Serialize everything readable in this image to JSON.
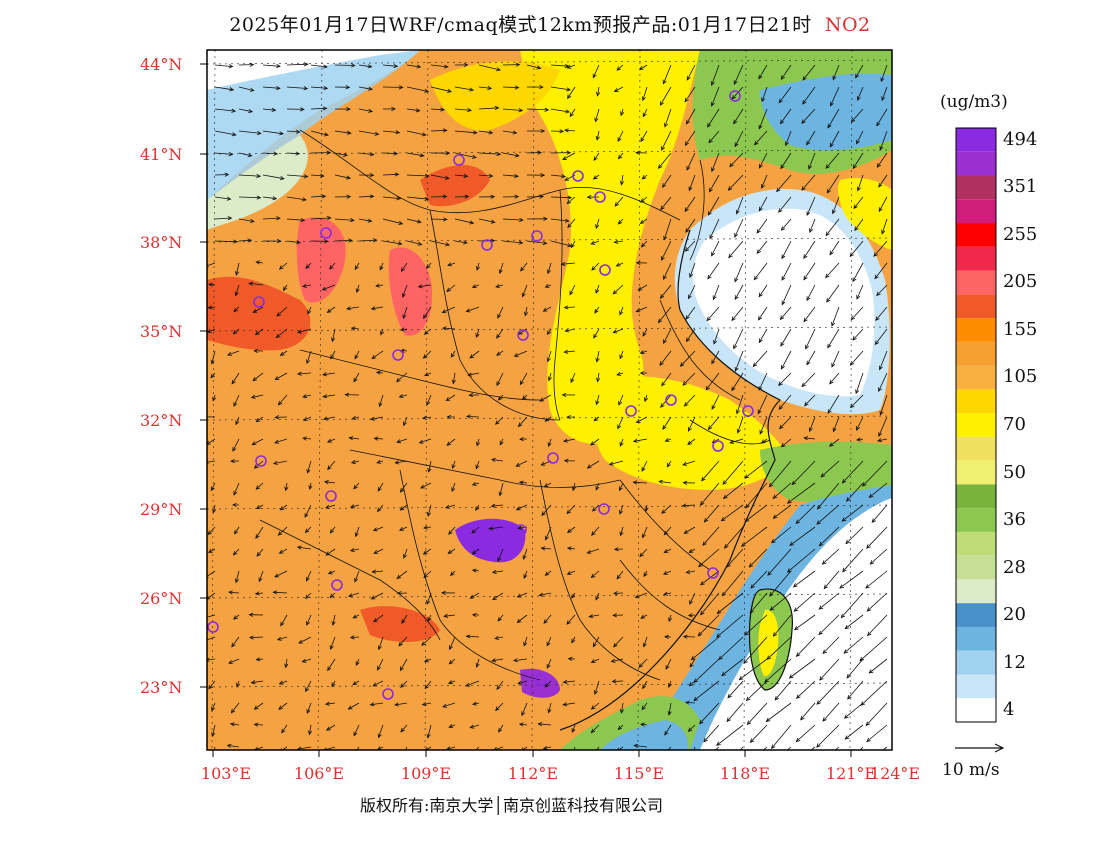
{
  "title": {
    "main": "2025年01月17日WRF/cmaq模式12km预报产品:01月17日21时",
    "pollutant": "NO2"
  },
  "map": {
    "lat_labels": [
      "44°N",
      "41°N",
      "38°N",
      "35°N",
      "32°N",
      "29°N",
      "26°N",
      "23°N"
    ],
    "lon_labels": [
      "103°E",
      "106°E",
      "109°E",
      "112°E",
      "115°E",
      "118°E",
      "121°E",
      "124°E"
    ]
  },
  "legend": {
    "unit": "(ug/m3)",
    "levels": [
      {
        "label": "494",
        "color": "#8a2be2"
      },
      {
        "label": "",
        "color": "#9b30d0"
      },
      {
        "label": "351",
        "color": "#b03060"
      },
      {
        "label": "",
        "color": "#d01c7a"
      },
      {
        "label": "255",
        "color": "#ff0000"
      },
      {
        "label": "",
        "color": "#f0284a"
      },
      {
        "label": "205",
        "color": "#ff6464"
      },
      {
        "label": "",
        "color": "#f05a28"
      },
      {
        "label": "155",
        "color": "#ff8c00"
      },
      {
        "label": "",
        "color": "#f5a030"
      },
      {
        "label": "105",
        "color": "#f8b040"
      },
      {
        "label": "",
        "color": "#ffd700"
      },
      {
        "label": "70",
        "color": "#fff000"
      },
      {
        "label": "",
        "color": "#f0e060"
      },
      {
        "label": "50",
        "color": "#f0f070"
      },
      {
        "label": "",
        "color": "#78b43c"
      },
      {
        "label": "36",
        "color": "#8cc850"
      },
      {
        "label": "",
        "color": "#bedd78"
      },
      {
        "label": "28",
        "color": "#c8e096"
      },
      {
        "label": "",
        "color": "#dcebc8"
      },
      {
        "label": "20",
        "color": "#4a90c8"
      },
      {
        "label": "",
        "color": "#6eb4e0"
      },
      {
        "label": "12",
        "color": "#a0d2f0"
      },
      {
        "label": "",
        "color": "#c8e6f8"
      },
      {
        "label": "4",
        "color": "#ffffff"
      }
    ]
  },
  "wind_reference": "10 m/s",
  "copyright": "版权所有:南京大学│南京创蓝科技有限公司",
  "colors": {
    "label_red": "#e03030",
    "land_orange": "#f5a342",
    "sea_white": "#ffffff"
  }
}
